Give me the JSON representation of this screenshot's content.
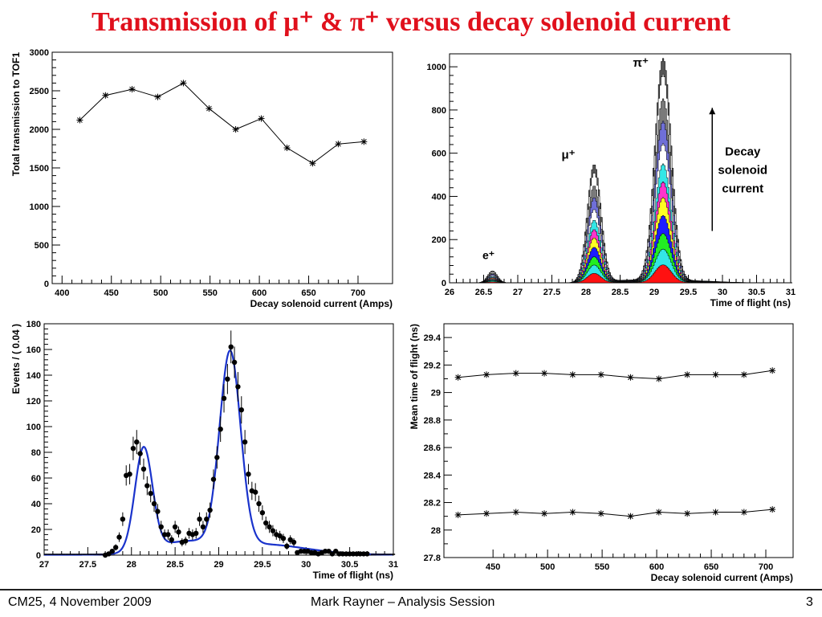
{
  "slide": {
    "title": "Transmission of μ⁺ & π⁺ versus decay solenoid current",
    "footer_left": "CM25, 4 November 2009",
    "footer_center": "Mark Rayner – Analysis Session",
    "footer_right": "3"
  },
  "chart_data": [
    {
      "id": "transmission",
      "type": "line",
      "xlabel": "Decay solenoid current (Amps)",
      "ylabel": "Total transmission to TOF1",
      "xlim": [
        390,
        735
      ],
      "ylim": [
        0,
        3000
      ],
      "xticks": [
        400,
        450,
        500,
        550,
        600,
        650,
        700
      ],
      "yticks": [
        0,
        500,
        1000,
        1500,
        2000,
        2500,
        3000
      ],
      "marker": "*",
      "series": [
        {
          "x": [
            418,
            444,
            471,
            497,
            523,
            549,
            576,
            602,
            628,
            654,
            680,
            706
          ],
          "y": [
            2120,
            2440,
            2520,
            2420,
            2600,
            2270,
            2000,
            2140,
            1760,
            1560,
            1810,
            1840
          ]
        }
      ]
    },
    {
      "id": "tof-stacked",
      "type": "area",
      "xlabel": "Time of flight (ns)",
      "ylabel": "",
      "xlim": [
        26,
        31
      ],
      "ylim": [
        0,
        1060
      ],
      "xticks": [
        26,
        26.5,
        27,
        27.5,
        28,
        28.5,
        29,
        29.5,
        30,
        30.5,
        31
      ],
      "yticks": [
        0,
        200,
        400,
        600,
        800,
        1000
      ],
      "peaks": {
        "electron": {
          "mu": 26.63,
          "sigma": 0.07,
          "amp": 55
        },
        "muon": {
          "mu": 28.12,
          "sigma": 0.1,
          "amp": 545
        },
        "pion": {
          "mu": 29.13,
          "sigma": 0.12,
          "amp": 1030
        }
      },
      "layer_fractions": [
        1.0,
        0.93,
        0.82,
        0.72,
        0.62,
        0.53,
        0.45,
        0.38,
        0.3,
        0.22,
        0.15,
        0.08
      ],
      "layer_colors": [
        "#555555",
        "#ffffff",
        "#7a7a7a",
        "#6f6fd8",
        "#ffffff",
        "#33e6e6",
        "#ff33cc",
        "#ffff22",
        "#1c1cff",
        "#22ee22",
        "#33e6e6",
        "#ff1111"
      ],
      "annotations": {
        "e_label": "e⁺",
        "mu_label": "μ⁺",
        "pi_label": "π⁺",
        "arrow_text": [
          "Decay",
          "solenoid",
          "current"
        ]
      }
    },
    {
      "id": "tof-fit",
      "type": "scatter",
      "xlabel": "Time of flight (ns)",
      "ylabel": "Events / ( 0.04 )",
      "xlim": [
        27,
        31
      ],
      "ylim": [
        0,
        180
      ],
      "xticks": [
        27,
        27.5,
        28,
        28.5,
        29,
        29.5,
        30,
        30.5,
        31
      ],
      "yticks": [
        0,
        20,
        40,
        60,
        80,
        100,
        120,
        140,
        160,
        180
      ],
      "points": {
        "x": [
          27.7,
          27.74,
          27.78,
          27.82,
          27.86,
          27.9,
          27.94,
          27.98,
          28.02,
          28.06,
          28.1,
          28.14,
          28.18,
          28.22,
          28.26,
          28.3,
          28.34,
          28.38,
          28.42,
          28.46,
          28.5,
          28.54,
          28.58,
          28.62,
          28.66,
          28.7,
          28.74,
          28.78,
          28.82,
          28.86,
          28.9,
          28.94,
          28.98,
          29.02,
          29.06,
          29.1,
          29.14,
          29.18,
          29.22,
          29.26,
          29.3,
          29.34,
          29.38,
          29.42,
          29.46,
          29.5,
          29.54,
          29.58,
          29.62,
          29.66,
          29.7,
          29.74,
          29.78,
          29.82,
          29.86,
          29.9,
          29.94,
          29.98,
          30.02,
          30.06,
          30.1,
          30.14,
          30.18,
          30.22,
          30.26,
          30.3,
          30.34,
          30.38,
          30.42,
          30.46,
          30.5,
          30.54,
          30.58,
          30.62,
          30.66,
          30.7
        ],
        "y": [
          0,
          1,
          3,
          6,
          14,
          28,
          62,
          63,
          83,
          88,
          79,
          67,
          54,
          48,
          40,
          34,
          22,
          16,
          16,
          12,
          22,
          18,
          10,
          11,
          17,
          16,
          17,
          28,
          22,
          28,
          35,
          59,
          76,
          98,
          122,
          137,
          162,
          150,
          131,
          113,
          88,
          63,
          50,
          49,
          40,
          33,
          25,
          22,
          19,
          16,
          15,
          13,
          7,
          12,
          10,
          2,
          3,
          3,
          3,
          2,
          2,
          1,
          2,
          3,
          3,
          1,
          3,
          1,
          1,
          1,
          1,
          1,
          1,
          1,
          1,
          1
        ]
      },
      "fit": {
        "components": [
          {
            "mu": 28.14,
            "sigma": 0.1,
            "amp": 80
          },
          {
            "mu": 29.13,
            "sigma": 0.12,
            "amp": 150
          },
          {
            "mu": 28.6,
            "sigma": 0.35,
            "amp": 9
          },
          {
            "mu": 29.5,
            "sigma": 0.5,
            "amp": 8
          }
        ],
        "color": "#1a33cc"
      }
    },
    {
      "id": "mean-tof",
      "type": "line",
      "xlabel": "Decay solenoid current (Amps)",
      "ylabel": "Mean time of flight (ns)",
      "xlim": [
        405,
        725
      ],
      "ylim": [
        27.8,
        29.5
      ],
      "xticks": [
        450,
        500,
        550,
        600,
        650,
        700
      ],
      "yticks": [
        27.8,
        28,
        28.2,
        28.4,
        28.6,
        28.8,
        29,
        29.2,
        29.4
      ],
      "marker": "*",
      "series": [
        {
          "x": [
            418,
            444,
            471,
            497,
            523,
            549,
            576,
            602,
            628,
            654,
            680,
            706
          ],
          "y": [
            29.11,
            29.13,
            29.14,
            29.14,
            29.13,
            29.13,
            29.11,
            29.1,
            29.13,
            29.13,
            29.13,
            29.16
          ]
        },
        {
          "x": [
            418,
            444,
            471,
            497,
            523,
            549,
            576,
            602,
            628,
            654,
            680,
            706
          ],
          "y": [
            28.11,
            28.12,
            28.13,
            28.12,
            28.13,
            28.12,
            28.1,
            28.13,
            28.12,
            28.13,
            28.13,
            28.15
          ]
        }
      ]
    }
  ]
}
